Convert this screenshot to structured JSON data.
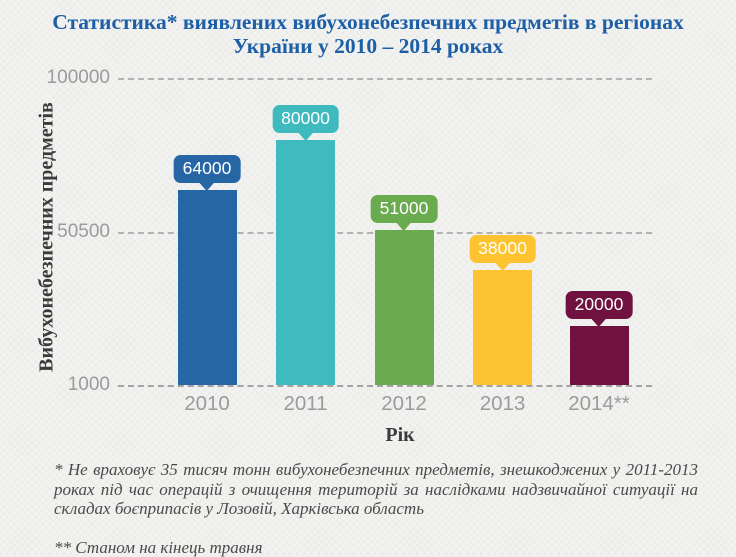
{
  "title": "Статистика* виявлених вибухонебезпечних предметів в регіонах України у 2010 – 2014 роках",
  "chart_data": {
    "type": "bar",
    "title": "Статистика* виявлених вибухонебезпечних предметів в регіонах України у 2010 – 2014 роках",
    "categories": [
      "2010",
      "2011",
      "2012",
      "2013",
      "2014**"
    ],
    "values": [
      64000,
      80000,
      51000,
      38000,
      20000
    ],
    "data_labels": [
      "64000",
      "80000",
      "51000",
      "38000",
      "20000"
    ],
    "bar_colors": [
      "#2666a5",
      "#3fbabf",
      "#69ab4e",
      "#fdc330",
      "#6f1240"
    ],
    "xlabel": "Рік",
    "ylabel": "Вибухонебезпечних предметів",
    "ylim": [
      1000,
      100000
    ],
    "yticks": [
      100000,
      50500,
      1000
    ],
    "ytick_labels": [
      "100000",
      "50500",
      "1000"
    ],
    "grid": true,
    "legend": false,
    "layout_hints": {
      "gridlines": "horizontal dashed gray",
      "value_bubbles": "rounded callout above each bar, same color as bar, white text"
    }
  },
  "footnotes": [
    "* Не враховує 35 тисяч тонн вибухонебезпечних предметів, знешкоджених у 2011-2013 роках під час операцій з очищення територій за наслідками надзвичайної ситуації на складах боєприпасів у Лозовій, Харківська область",
    "** Станом на кінець травня"
  ],
  "colors": {
    "title_text": "#1d5fa6",
    "axis_tick_text": "#9b9b9b",
    "axis_title_text": "#3b3b3b",
    "footnote_text": "#4a4a4a",
    "background": "#f2f2f0",
    "gridline": "#b3b3b3"
  }
}
